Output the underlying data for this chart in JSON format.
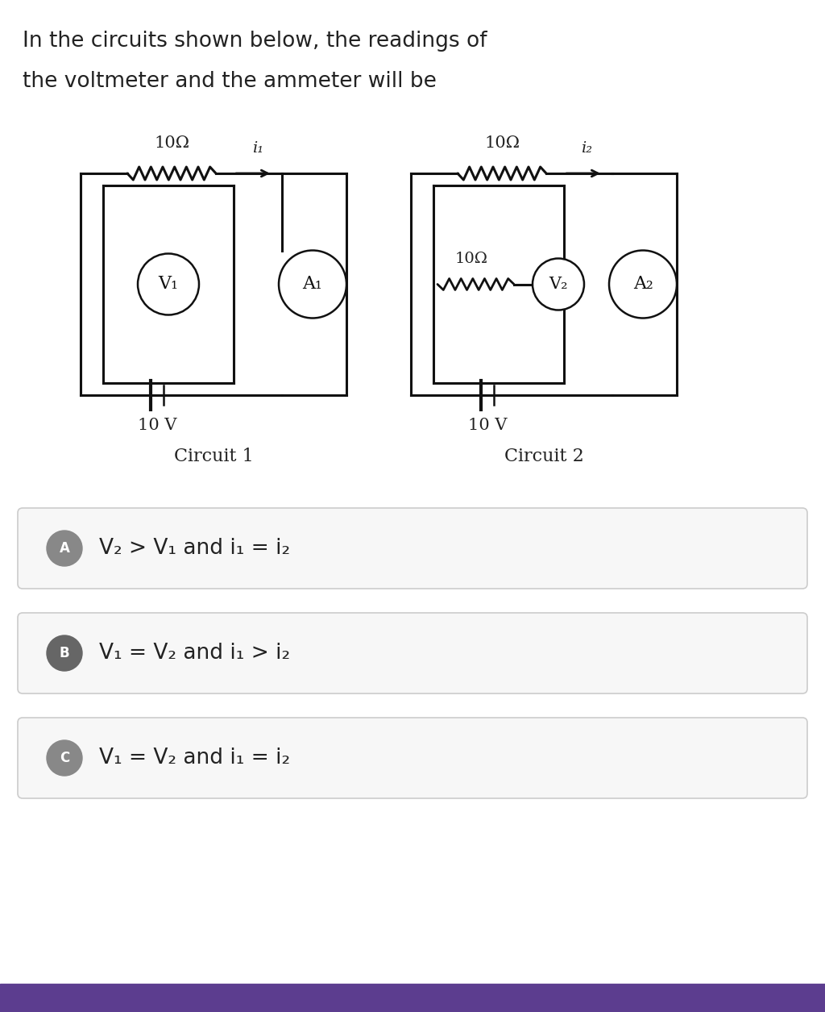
{
  "title_line1": "In the circuits shown below, the readings of",
  "title_line2": "the voltmeter and the ammeter will be",
  "background_color": "#ffffff",
  "circuit1_label": "Circuit 1",
  "circuit2_label": "Circuit 2",
  "options": [
    {
      "letter": "A",
      "text": "V₂ > V₁ and i₁ = i₂"
    },
    {
      "letter": "B",
      "text": "V₁ = V₂ and i₁ > i₂"
    },
    {
      "letter": "C",
      "text": "V₁ = V₂ and i₁ = i₂"
    }
  ],
  "option_box_color": "#f7f7f7",
  "option_box_border": "#cccccc",
  "option_letter_bg_A": "#888888",
  "option_letter_bg_B": "#666666",
  "option_letter_bg_C": "#888888",
  "bottom_bar_color": "#5c3d8f",
  "text_color": "#222222",
  "lc": "#111111"
}
